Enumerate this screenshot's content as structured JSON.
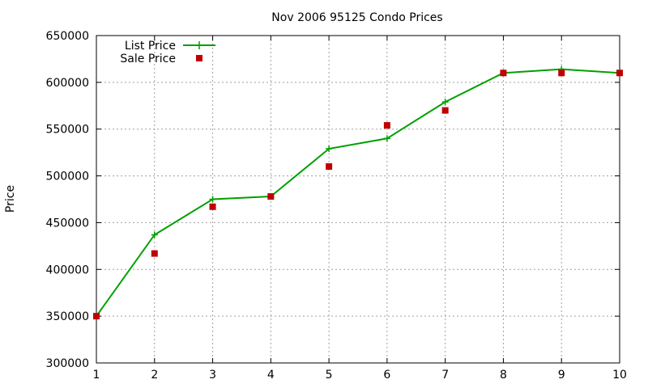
{
  "chart_data": {
    "type": "line",
    "title": "Nov 2006 95125 Condo Prices",
    "xlabel": "",
    "ylabel": "Price",
    "xlim": [
      1,
      10
    ],
    "ylim": [
      300000,
      650000
    ],
    "x_ticks": [
      "1",
      "2",
      "3",
      "4",
      "5",
      "6",
      "7",
      "8",
      "9",
      "10"
    ],
    "y_ticks": [
      "300000",
      "350000",
      "400000",
      "450000",
      "500000",
      "550000",
      "600000",
      "650000"
    ],
    "grid": true,
    "legend_position": "top-left",
    "series": [
      {
        "name": "List Price",
        "style": "line-plus",
        "color": "#00a000",
        "x": [
          1,
          2,
          3,
          4,
          5,
          6,
          7,
          8,
          9,
          10
        ],
        "y": [
          350000,
          437000,
          475000,
          478000,
          529000,
          540000,
          579000,
          610000,
          614000,
          610000
        ]
      },
      {
        "name": "Sale Price",
        "style": "square-points",
        "color": "#c00000",
        "x": [
          1,
          2,
          3,
          4,
          5,
          6,
          7,
          8,
          9,
          10
        ],
        "y": [
          350000,
          417000,
          467000,
          478000,
          510000,
          554000,
          570000,
          610000,
          610000,
          610000
        ]
      }
    ]
  }
}
